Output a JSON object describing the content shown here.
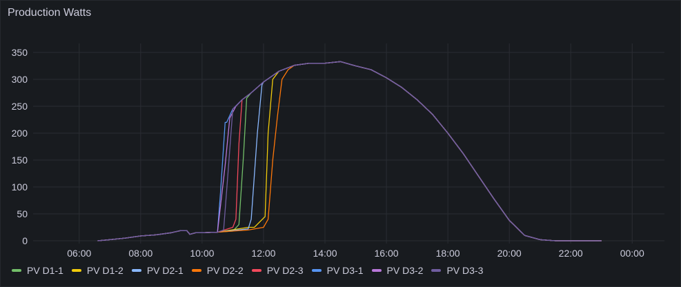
{
  "panel": {
    "title": "Production Watts"
  },
  "chart_data": {
    "type": "line",
    "title": "Production Watts",
    "xlabel": "",
    "ylabel": "",
    "x_unit": "hour of day",
    "xlim": [
      4.5,
      25.05
    ],
    "ylim": [
      0,
      360
    ],
    "x_ticks": [
      {
        "v": 6,
        "label": "06:00"
      },
      {
        "v": 8,
        "label": "08:00"
      },
      {
        "v": 10,
        "label": "10:00"
      },
      {
        "v": 12,
        "label": "12:00"
      },
      {
        "v": 14,
        "label": "14:00"
      },
      {
        "v": 16,
        "label": "16:00"
      },
      {
        "v": 18,
        "label": "18:00"
      },
      {
        "v": 20,
        "label": "20:00"
      },
      {
        "v": 22,
        "label": "22:00"
      },
      {
        "v": 24,
        "label": "00:00"
      }
    ],
    "y_ticks": [
      0,
      50,
      100,
      150,
      200,
      250,
      300,
      350
    ],
    "grid": true,
    "legend_placement": "bottom-left",
    "common_pre": [
      [
        6.6,
        0
      ],
      [
        7,
        2
      ],
      [
        7.5,
        5
      ],
      [
        8,
        9
      ],
      [
        8.5,
        11
      ],
      [
        9,
        15
      ],
      [
        9.3,
        19
      ],
      [
        9.5,
        19
      ],
      [
        9.6,
        12
      ],
      [
        9.8,
        15
      ],
      [
        10,
        15
      ],
      [
        10.5,
        16
      ]
    ],
    "common_post": [
      [
        10.8,
        220
      ],
      [
        11,
        245
      ],
      [
        11.3,
        262
      ],
      [
        11.6,
        275
      ],
      [
        12,
        295
      ],
      [
        12.5,
        315
      ],
      [
        13,
        326
      ],
      [
        13.5,
        330
      ],
      [
        14,
        330
      ],
      [
        14.5,
        333
      ],
      [
        15,
        325
      ],
      [
        15.5,
        318
      ],
      [
        16,
        303
      ],
      [
        16.5,
        285
      ],
      [
        17,
        262
      ],
      [
        17.5,
        235
      ],
      [
        18,
        200
      ],
      [
        18.5,
        162
      ],
      [
        19,
        120
      ],
      [
        19.5,
        78
      ],
      [
        20,
        38
      ],
      [
        20.5,
        10
      ],
      [
        21,
        2
      ],
      [
        21.5,
        0
      ],
      [
        23,
        0
      ]
    ],
    "series": [
      {
        "name": "PV D1-1",
        "color": "#73bf69",
        "transition": [
          [
            11,
            18
          ],
          [
            11.2,
            30
          ],
          [
            11.35,
            160
          ],
          [
            11.45,
            265
          ]
        ]
      },
      {
        "name": "PV D1-2",
        "color": "#f2cc0c",
        "transition": [
          [
            11.5,
            25
          ],
          [
            11.7,
            25
          ],
          [
            12.05,
            45
          ],
          [
            12.15,
            200
          ],
          [
            12.3,
            300
          ]
        ]
      },
      {
        "name": "PV D2-1",
        "color": "#8ab8ff",
        "transition": [
          [
            11.5,
            22
          ],
          [
            11.6,
            40
          ],
          [
            11.8,
            200
          ],
          [
            11.95,
            290
          ]
        ]
      },
      {
        "name": "PV D2-2",
        "color": "#ff780a",
        "transition": [
          [
            11.5,
            20
          ],
          [
            12,
            25
          ],
          [
            12.15,
            40
          ],
          [
            12.3,
            150
          ],
          [
            12.45,
            230
          ],
          [
            12.6,
            300
          ],
          [
            12.8,
            318
          ]
        ]
      },
      {
        "name": "PV D2-3",
        "color": "#f2495c",
        "transition": [
          [
            11,
            25
          ],
          [
            11.1,
            40
          ],
          [
            11.2,
            180
          ],
          [
            11.3,
            262
          ]
        ]
      },
      {
        "name": "PV D3-1",
        "color": "#5794f2",
        "transition": [
          [
            10.6,
            90
          ],
          [
            10.75,
            220
          ]
        ]
      },
      {
        "name": "PV D3-2",
        "color": "#b877d9",
        "transition": [
          [
            10.75,
            140
          ],
          [
            10.9,
            228
          ],
          [
            11.1,
            250
          ]
        ]
      },
      {
        "name": "PV D3-3",
        "color": "#705da0",
        "transition": [
          [
            10.7,
            20
          ],
          [
            10.85,
            130
          ],
          [
            11.0,
            245
          ]
        ]
      }
    ]
  }
}
